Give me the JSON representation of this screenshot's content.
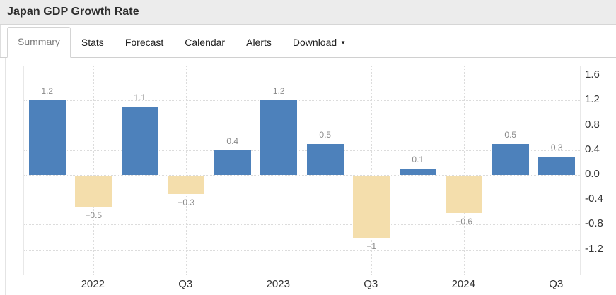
{
  "header": {
    "title": "Japan GDP Growth Rate"
  },
  "tabs": {
    "items": [
      {
        "label": "Summary",
        "active": true
      },
      {
        "label": "Stats"
      },
      {
        "label": "Forecast"
      },
      {
        "label": "Calendar"
      },
      {
        "label": "Alerts"
      },
      {
        "label": "Download",
        "has_caret": true
      }
    ],
    "caret_icon": "▼"
  },
  "chart_data": {
    "type": "bar",
    "title": "Japan GDP Growth Rate",
    "values": [
      1.2,
      -0.5,
      1.1,
      -0.3,
      0.4,
      1.2,
      0.5,
      -1,
      0.1,
      -0.6,
      0.5,
      0.3
    ],
    "value_labels": [
      "1.2",
      "−0.5",
      "1.1",
      "−0.3",
      "0.4",
      "1.2",
      "0.5",
      "−1",
      "0.1",
      "−0.6",
      "0.5",
      "0.3"
    ],
    "x_tick_labels": [
      "",
      "2022",
      "",
      "Q3",
      "",
      "2023",
      "",
      "Q3",
      "",
      "2024",
      "",
      "Q3"
    ],
    "y_tick_labels": [
      "1.6",
      "1.2",
      "0.8",
      "0.4",
      "0.0",
      "-0.4",
      "-0.8",
      "-1.2"
    ],
    "ylim": [
      -1.6,
      1.75
    ],
    "grid": "dotted",
    "legend": "none",
    "y_axis_position": "right",
    "colors": {
      "positive_bar": "#4D81BB",
      "negative_bar": "#F4DEAC",
      "gridline": "#DCDCDC",
      "value_label": "#8A8A8A",
      "axis_label": "#333333",
      "title_bar_bg": "#ECECEC"
    }
  }
}
